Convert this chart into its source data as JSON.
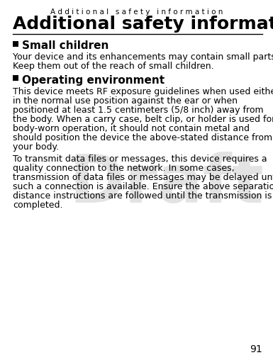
{
  "page_title_small": "A d d i t i o n a l   s a f e t y   i n f o r m a t i o n",
  "page_title_large": "Additional safety information",
  "section1_heading": "Small children",
  "section2_heading": "Operating environment",
  "section2_body1_lines": [
    "This device meets RF exposure guidelines when used either",
    "in the normal use position against the ear or when",
    "positioned at least 1.5 centimeters (5/8 inch) away from",
    "the body. When a carry case, belt clip, or holder is used for",
    "body-worn operation, it should not contain metal and",
    "should position the device the above-stated distance from",
    "your body."
  ],
  "section2_body2_lines": [
    "To transmit data files or messages, this device requires a",
    "quality connection to the network. In some cases,",
    "transmission of data files or messages may be delayed until",
    "such a connection is available. Ensure the above separation",
    "distance instructions are followed until the transmission is",
    "completed."
  ],
  "section1_body_lines": [
    "Your device and its enhancements may contain small parts.",
    "Keep them out of the reach of small children."
  ],
  "page_number": "91",
  "draft_watermark": "Draft",
  "bg_color": "#ffffff",
  "text_color": "#000000",
  "watermark_color": "#c8c8c8",
  "small_title_fontsize": 7.5,
  "large_title_fontsize": 18,
  "heading_fontsize": 11,
  "body_fontsize": 9,
  "page_num_fontsize": 10
}
